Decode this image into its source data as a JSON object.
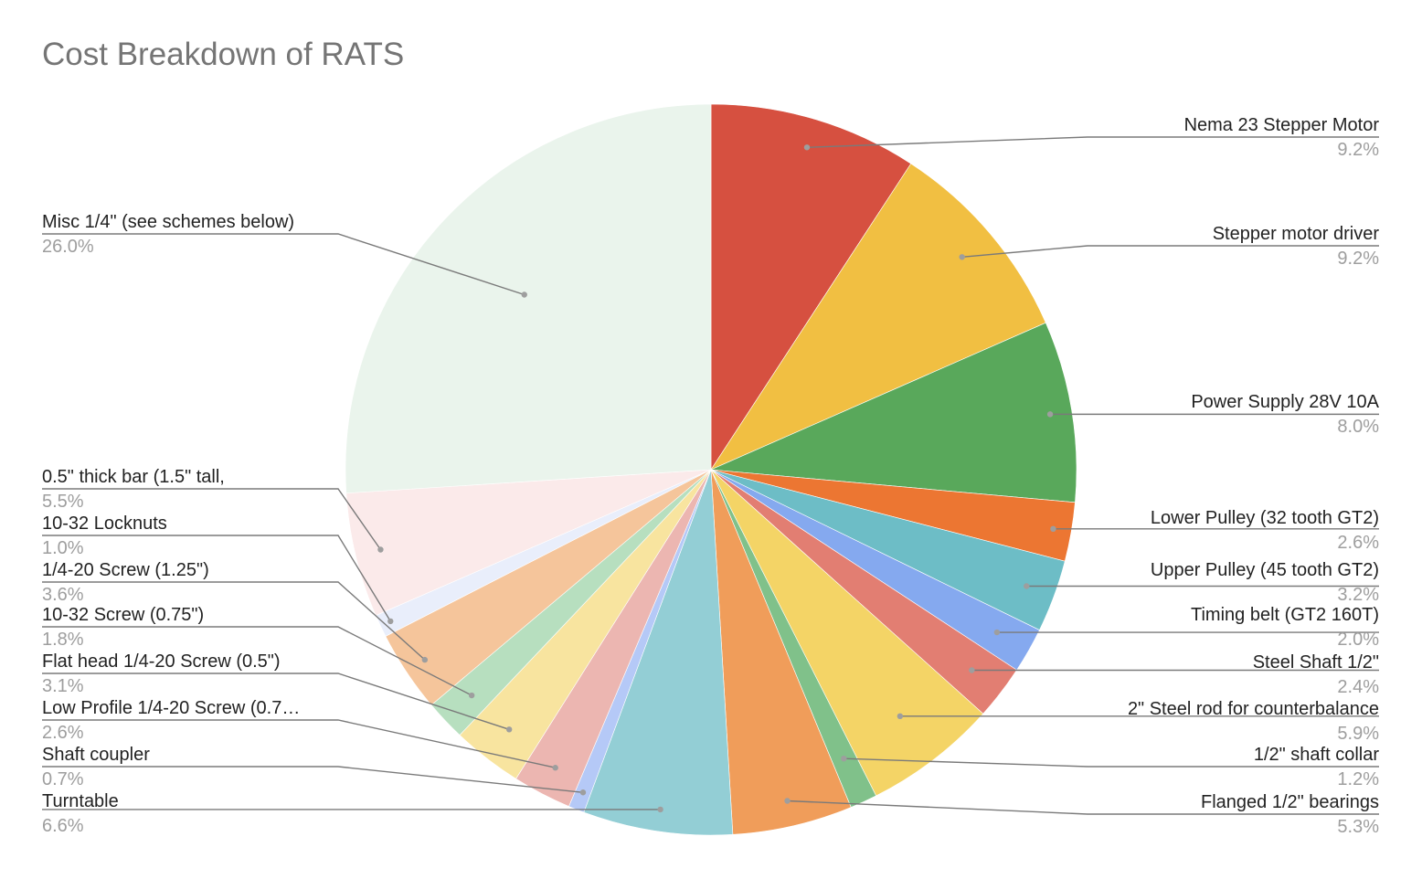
{
  "chart_data": {
    "type": "pie",
    "title": "Cost Breakdown of RATS",
    "slices": [
      {
        "label": "Nema 23 Stepper Motor",
        "value": 9.2,
        "value_label": "9.2%",
        "color": "#d65040"
      },
      {
        "label": "Stepper motor driver",
        "value": 9.2,
        "value_label": "9.2%",
        "color": "#f1bf42"
      },
      {
        "label": "Power Supply 28V 10A",
        "value": 8.0,
        "value_label": "8.0%",
        "color": "#59a85b"
      },
      {
        "label": "Lower Pulley (32 tooth GT2)",
        "value": 2.6,
        "value_label": "2.6%",
        "color": "#ec7632"
      },
      {
        "label": "Upper Pulley (45 tooth GT2)",
        "value": 3.2,
        "value_label": "3.2%",
        "color": "#6dbdc6"
      },
      {
        "label": "Timing belt (GT2 160T)",
        "value": 2.0,
        "value_label": "2.0%",
        "color": "#85a9ef"
      },
      {
        "label": "Steel Shaft 1/2\"",
        "value": 2.4,
        "value_label": "2.4%",
        "color": "#e27e72"
      },
      {
        "label": "2\" Steel rod for counterbalance",
        "value": 5.9,
        "value_label": "5.9%",
        "color": "#f4d466"
      },
      {
        "label": "1/2\" shaft collar",
        "value": 1.2,
        "value_label": "1.2%",
        "color": "#80c18a"
      },
      {
        "label": "Flanged 1/2\" bearings",
        "value": 5.3,
        "value_label": "5.3%",
        "color": "#f09d5a"
      },
      {
        "label": "Turntable",
        "value": 6.6,
        "value_label": "6.6%",
        "color": "#93ced5"
      },
      {
        "label": "Shaft coupler",
        "value": 0.7,
        "value_label": "0.7%",
        "color": "#b5c9f7"
      },
      {
        "label": "Low Profile 1/4-20 Screw (0.7…",
        "value": 2.6,
        "value_label": "2.6%",
        "color": "#ecb6b1"
      },
      {
        "label": "Flat head 1/4-20 Screw (0.5\")",
        "value": 3.1,
        "value_label": "3.1%",
        "color": "#f8e49f"
      },
      {
        "label": "10-32 Screw (0.75\")",
        "value": 1.8,
        "value_label": "1.8%",
        "color": "#b7dfbf"
      },
      {
        "label": "1/4-20 Screw (1.25\")",
        "value": 3.6,
        "value_label": "3.6%",
        "color": "#f5c59b"
      },
      {
        "label": "10-32 Locknuts",
        "value": 1.0,
        "value_label": "1.0%",
        "color": "#e9eefb"
      },
      {
        "label": "0.5\" thick bar (1.5\" tall,",
        "value": 5.5,
        "value_label": "5.5%",
        "color": "#fbeaea"
      },
      {
        "label": "Misc 1/4\" (see schemes below)",
        "value": 26.0,
        "value_label": "26.0%",
        "color": "#eaf4ec"
      }
    ],
    "start_angle": "12 o'clock",
    "direction": "clockwise",
    "legend": "labeled leader lines"
  }
}
